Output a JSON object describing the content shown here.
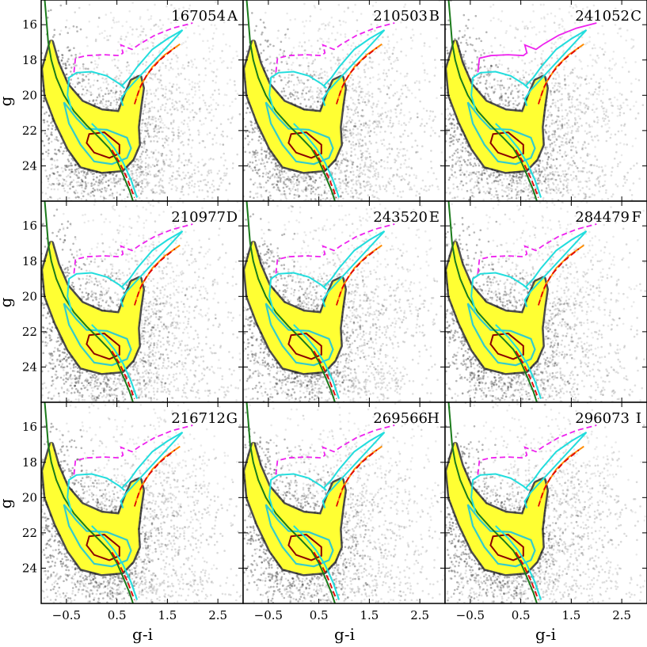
{
  "figure": {
    "xlabel": "g-i",
    "ylabel": "g",
    "colors": {
      "density_background": "#2b2b2b",
      "region_fill": "#ffff33",
      "contour_outer": "#33cccc",
      "contour_inner": "#8b0000",
      "isochrone_green": "#1a7a1a",
      "isochrone_cyan": "#22dddd",
      "isochrone_orange": "#ff8c00",
      "isochrone_red": "#e00000",
      "isochrone_magenta": "#ee22ee"
    }
  },
  "chart_data": [
    {
      "type": "scatter",
      "id": "167054",
      "letter": "A",
      "xlabel": "",
      "ylabel": "g",
      "xlim": [
        -1.0,
        3.0
      ],
      "ylim": [
        26.0,
        14.6
      ],
      "xticks": [
        -0.5,
        0.5,
        1.5,
        2.5
      ],
      "yticks": [
        16,
        18,
        20,
        22,
        24
      ],
      "magenta_style": "dashed"
    },
    {
      "type": "scatter",
      "id": "210503",
      "letter": "B",
      "xlabel": "",
      "ylabel": "",
      "xlim": [
        -1.0,
        3.0
      ],
      "ylim": [
        26.0,
        14.6
      ],
      "xticks": [
        -0.5,
        0.5,
        1.5,
        2.5
      ],
      "yticks": [
        16,
        18,
        20,
        22,
        24
      ],
      "magenta_style": "dashed"
    },
    {
      "type": "scatter",
      "id": "241052",
      "letter": "C",
      "xlabel": "",
      "ylabel": "",
      "xlim": [
        -1.0,
        3.0
      ],
      "ylim": [
        26.0,
        14.6
      ],
      "xticks": [
        -0.5,
        0.5,
        1.5,
        2.5
      ],
      "yticks": [
        16,
        18,
        20,
        22,
        24
      ],
      "magenta_style": "solid"
    },
    {
      "type": "scatter",
      "id": "210977",
      "letter": "D",
      "xlabel": "",
      "ylabel": "g",
      "xlim": [
        -1.0,
        3.0
      ],
      "ylim": [
        26.0,
        14.6
      ],
      "xticks": [
        -0.5,
        0.5,
        1.5,
        2.5
      ],
      "yticks": [
        16,
        18,
        20,
        22,
        24
      ],
      "magenta_style": "dashed"
    },
    {
      "type": "scatter",
      "id": "243520",
      "letter": "E",
      "xlabel": "",
      "ylabel": "",
      "xlim": [
        -1.0,
        3.0
      ],
      "ylim": [
        26.0,
        14.6
      ],
      "xticks": [
        -0.5,
        0.5,
        1.5,
        2.5
      ],
      "yticks": [
        16,
        18,
        20,
        22,
        24
      ],
      "magenta_style": "dashed"
    },
    {
      "type": "scatter",
      "id": "284479",
      "letter": "F",
      "xlabel": "",
      "ylabel": "",
      "xlim": [
        -1.0,
        3.0
      ],
      "ylim": [
        26.0,
        14.6
      ],
      "xticks": [
        -0.5,
        0.5,
        1.5,
        2.5
      ],
      "yticks": [
        16,
        18,
        20,
        22,
        24
      ],
      "magenta_style": "dashed"
    },
    {
      "type": "scatter",
      "id": "216712",
      "letter": "G",
      "xlabel": "g-i",
      "ylabel": "g",
      "xlim": [
        -1.0,
        3.0
      ],
      "ylim": [
        26.0,
        14.6
      ],
      "xticks": [
        -0.5,
        0.5,
        1.5,
        2.5
      ],
      "yticks": [
        16,
        18,
        20,
        22,
        24
      ],
      "magenta_style": "dashed"
    },
    {
      "type": "scatter",
      "id": "269566",
      "letter": "H",
      "xlabel": "g-i",
      "ylabel": "",
      "xlim": [
        -1.0,
        3.0
      ],
      "ylim": [
        26.0,
        14.6
      ],
      "xticks": [
        -0.5,
        0.5,
        1.5,
        2.5
      ],
      "yticks": [
        16,
        18,
        20,
        22,
        24
      ],
      "magenta_style": "dashed"
    },
    {
      "type": "scatter",
      "id": "296073",
      "letter": "I",
      "xlabel": "g-i",
      "ylabel": "",
      "xlim": [
        -1.0,
        3.0
      ],
      "ylim": [
        26.0,
        14.6
      ],
      "xticks": [
        -0.5,
        0.5,
        1.5,
        2.5
      ],
      "yticks": [
        16,
        18,
        20,
        22,
        24
      ],
      "magenta_style": "dashed"
    }
  ],
  "curves": {
    "green_isochrone": [
      [
        -0.93,
        14.6
      ],
      [
        -0.9,
        15.6
      ],
      [
        -0.86,
        17.0
      ],
      [
        -0.8,
        18.0
      ],
      [
        -0.7,
        19.0
      ],
      [
        -0.55,
        20.0
      ],
      [
        -0.35,
        20.9
      ],
      [
        -0.1,
        21.7
      ],
      [
        0.15,
        22.4
      ],
      [
        0.35,
        23.0
      ],
      [
        0.5,
        23.7
      ],
      [
        0.62,
        24.5
      ],
      [
        0.75,
        25.4
      ],
      [
        0.82,
        26.0
      ]
    ],
    "cyan_isochrone": [
      [
        -0.4,
        20.8
      ],
      [
        -0.48,
        20.0
      ],
      [
        -0.45,
        19.0
      ],
      [
        -0.3,
        18.72
      ],
      [
        0.0,
        18.66
      ],
      [
        0.3,
        18.9
      ],
      [
        0.55,
        19.35
      ],
      [
        0.65,
        19.6
      ],
      [
        0.6,
        19.45
      ],
      [
        0.75,
        19.0
      ],
      [
        0.9,
        18.4
      ],
      [
        1.2,
        17.4
      ],
      [
        1.5,
        16.8
      ],
      [
        1.8,
        16.3
      ],
      [
        0.7,
        19.7
      ],
      [
        0.58,
        20.2
      ],
      [
        0.62,
        20.6
      ]
    ],
    "cyan_tail": [
      [
        0.0,
        21.6
      ],
      [
        0.25,
        22.3
      ],
      [
        0.45,
        23.0
      ],
      [
        0.62,
        23.8
      ],
      [
        0.78,
        24.8
      ],
      [
        0.9,
        25.8
      ]
    ],
    "red_dashed": [
      [
        0.85,
        20.5
      ],
      [
        0.95,
        19.6
      ],
      [
        1.1,
        18.8
      ],
      [
        1.35,
        18.0
      ],
      [
        1.65,
        17.3
      ]
    ],
    "red_tail": [
      [
        0.4,
        23.1
      ],
      [
        0.55,
        23.8
      ],
      [
        0.7,
        24.7
      ],
      [
        0.85,
        25.8
      ]
    ],
    "orange_isochrone": [
      [
        0.88,
        20.2
      ],
      [
        1.0,
        19.3
      ],
      [
        1.2,
        18.4
      ],
      [
        1.45,
        17.7
      ],
      [
        1.75,
        17.1
      ]
    ],
    "magenta_isochrone": [
      [
        -0.35,
        18.7
      ],
      [
        -0.32,
        17.9
      ],
      [
        -0.1,
        17.75
      ],
      [
        0.25,
        17.7
      ],
      [
        0.55,
        17.75
      ],
      [
        0.62,
        17.6
      ],
      [
        0.58,
        17.15
      ],
      [
        0.8,
        17.4
      ],
      [
        0.95,
        17.1
      ],
      [
        1.25,
        16.6
      ],
      [
        1.6,
        16.2
      ],
      [
        2.0,
        15.9
      ]
    ]
  },
  "contours": {
    "yellow_region": [
      [
        -0.8,
        17.0
      ],
      [
        -0.68,
        18.2
      ],
      [
        -0.5,
        19.4
      ],
      [
        -0.2,
        20.4
      ],
      [
        0.2,
        20.9
      ],
      [
        0.55,
        21.0
      ],
      [
        0.68,
        20.0
      ],
      [
        0.8,
        19.2
      ],
      [
        0.95,
        19.0
      ],
      [
        1.0,
        19.6
      ],
      [
        0.95,
        20.6
      ],
      [
        0.9,
        21.8
      ],
      [
        0.92,
        22.8
      ],
      [
        0.8,
        23.6
      ],
      [
        0.6,
        24.2
      ],
      [
        0.2,
        24.3
      ],
      [
        -0.2,
        24.0
      ],
      [
        -0.45,
        23.0
      ],
      [
        -0.7,
        21.5
      ],
      [
        -0.9,
        20.0
      ],
      [
        -0.95,
        18.5
      ]
    ],
    "cyan_contour": [
      [
        -0.55,
        20.4
      ],
      [
        -0.3,
        21.3
      ],
      [
        -0.1,
        21.9
      ],
      [
        0.3,
        21.95
      ],
      [
        0.7,
        22.4
      ],
      [
        0.78,
        23.0
      ],
      [
        0.7,
        23.55
      ],
      [
        0.4,
        23.9
      ],
      [
        0.05,
        23.75
      ],
      [
        -0.22,
        22.8
      ],
      [
        -0.45,
        21.6
      ]
    ],
    "red_contour": [
      [
        -0.05,
        22.2
      ],
      [
        0.25,
        22.1
      ],
      [
        0.55,
        22.8
      ],
      [
        0.55,
        23.3
      ],
      [
        0.35,
        23.55
      ],
      [
        0.05,
        23.25
      ],
      [
        -0.1,
        22.7
      ]
    ]
  }
}
